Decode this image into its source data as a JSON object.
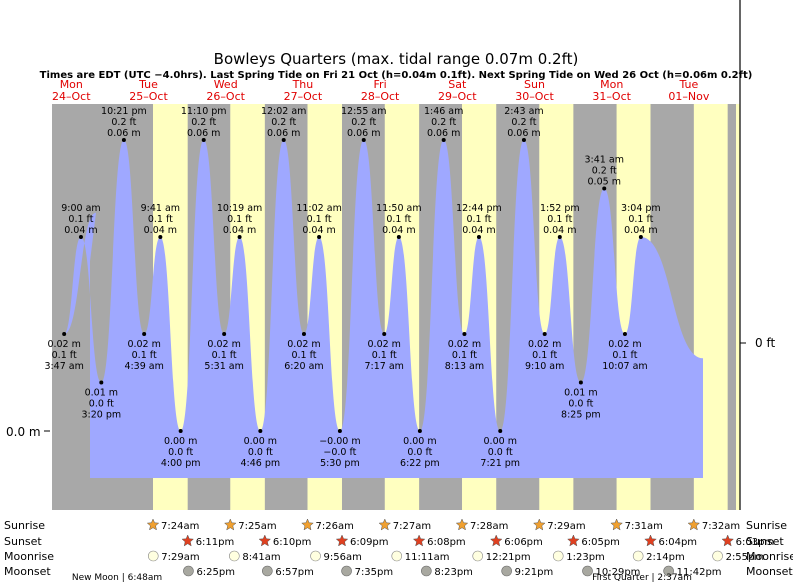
{
  "chart_data": {
    "type": "area",
    "title": "Bowleys Quarters (max. tidal range 0.07m 0.2ft)",
    "subtitle": "Times are EDT (UTC −4.0hrs). Last Spring Tide on Fri 21 Oct (h=0.04m 0.1ft). Next Spring Tide on Wed 26 Oct (h=0.06m 0.2ft)",
    "y_left_label": "0.0 m",
    "y_right_label": "0 ft",
    "days": [
      {
        "dow": "Mon",
        "date": "24–Oct"
      },
      {
        "dow": "Tue",
        "date": "25–Oct"
      },
      {
        "dow": "Wed",
        "date": "26–Oct"
      },
      {
        "dow": "Thu",
        "date": "27–Oct"
      },
      {
        "dow": "Fri",
        "date": "28–Oct"
      },
      {
        "dow": "Sat",
        "date": "29–Oct"
      },
      {
        "dow": "Sun",
        "date": "30–Oct"
      },
      {
        "dow": "Mon",
        "date": "31–Oct"
      },
      {
        "dow": "Tue",
        "date": "01–Nov"
      }
    ],
    "tides": [
      {
        "time": "3:47 am",
        "m": "0.02 m",
        "ft": "0.1 ft",
        "h": 0.02
      },
      {
        "time": "9:00 am",
        "m": "0.04 m",
        "ft": "0.1 ft",
        "h": 0.04
      },
      {
        "time": "3:20 pm",
        "m": "0.01 m",
        "ft": "0.0 ft",
        "h": 0.01
      },
      {
        "time": "10:21 pm",
        "m": "0.06 m",
        "ft": "0.2 ft",
        "h": 0.06
      },
      {
        "time": "4:39 am",
        "m": "0.02 m",
        "ft": "0.1 ft",
        "h": 0.02
      },
      {
        "time": "9:41 am",
        "m": "0.04 m",
        "ft": "0.1 ft",
        "h": 0.04
      },
      {
        "time": "4:00 pm",
        "m": "0.00 m",
        "ft": "0.0 ft",
        "h": 0.0
      },
      {
        "time": "11:10 pm",
        "m": "0.06 m",
        "ft": "0.2 ft",
        "h": 0.06
      },
      {
        "time": "5:31 am",
        "m": "0.02 m",
        "ft": "0.1 ft",
        "h": 0.02
      },
      {
        "time": "10:19 am",
        "m": "0.04 m",
        "ft": "0.1 ft",
        "h": 0.04
      },
      {
        "time": "4:46 pm",
        "m": "0.00 m",
        "ft": "0.0 ft",
        "h": 0.0
      },
      {
        "time": "12:02 am",
        "m": "0.06 m",
        "ft": "0.2 ft",
        "h": 0.06
      },
      {
        "time": "6:20 am",
        "m": "0.02 m",
        "ft": "0.1 ft",
        "h": 0.02
      },
      {
        "time": "11:02 am",
        "m": "0.04 m",
        "ft": "0.1 ft",
        "h": 0.04
      },
      {
        "time": "5:30 pm",
        "m": "−0.00 m",
        "ft": "−0.0 ft",
        "h": 0.0
      },
      {
        "time": "12:55 am",
        "m": "0.06 m",
        "ft": "0.2 ft",
        "h": 0.06
      },
      {
        "time": "7:17 am",
        "m": "0.02 m",
        "ft": "0.1 ft",
        "h": 0.02
      },
      {
        "time": "11:50 am",
        "m": "0.04 m",
        "ft": "0.1 ft",
        "h": 0.04
      },
      {
        "time": "6:22 pm",
        "m": "0.00 m",
        "ft": "0.0 ft",
        "h": 0.0
      },
      {
        "time": "1:46 am",
        "m": "0.06 m",
        "ft": "0.2 ft",
        "h": 0.06
      },
      {
        "time": "8:13 am",
        "m": "0.02 m",
        "ft": "0.1 ft",
        "h": 0.02
      },
      {
        "time": "12:44 pm",
        "m": "0.04 m",
        "ft": "0.1 ft",
        "h": 0.04
      },
      {
        "time": "7:21 pm",
        "m": "0.00 m",
        "ft": "0.0 ft",
        "h": 0.0
      },
      {
        "time": "2:43 am",
        "m": "0.06 m",
        "ft": "0.2 ft",
        "h": 0.06
      },
      {
        "time": "9:10 am",
        "m": "0.02 m",
        "ft": "0.1 ft",
        "h": 0.02
      },
      {
        "time": "1:52 pm",
        "m": "0.04 m",
        "ft": "0.1 ft",
        "h": 0.04
      },
      {
        "time": "8:25 pm",
        "m": "0.01 m",
        "ft": "0.0 ft",
        "h": 0.01
      },
      {
        "time": "3:41 am",
        "m": "0.05 m",
        "ft": "0.2 ft",
        "h": 0.05
      },
      {
        "time": "10:07 am",
        "m": "0.02 m",
        "ft": "0.1 ft",
        "h": 0.02
      },
      {
        "time": "3:04 pm",
        "m": "0.04 m",
        "ft": "0.1 ft",
        "h": 0.04
      }
    ],
    "sunrise": [
      "7:24am",
      "7:25am",
      "7:26am",
      "7:27am",
      "7:28am",
      "7:29am",
      "7:31am",
      "7:32am"
    ],
    "sunset": [
      "6:11pm",
      "6:10pm",
      "6:09pm",
      "6:08pm",
      "6:06pm",
      "6:05pm",
      "6:04pm",
      "6:03pm"
    ],
    "moonrise": [
      "7:29am",
      "8:41am",
      "9:56am",
      "11:11am",
      "12:21pm",
      "1:23pm",
      "2:14pm",
      "2:55pm"
    ],
    "moonset": [
      "6:25pm",
      "6:57pm",
      "7:35pm",
      "8:23pm",
      "9:21pm",
      "10:29pm",
      "11:42pm"
    ],
    "row_labels": {
      "sunrise": "Sunrise",
      "sunset": "Sunset",
      "moonrise": "Moonrise",
      "moonset": "Moonset"
    },
    "moon_phases": [
      {
        "label": "New Moon | 6:48am"
      },
      {
        "label": "First Quarter | 2:37am"
      }
    ],
    "colors": {
      "water": "#9fa8ff",
      "day": "#ffffc0",
      "night": "#a8a8a8",
      "accent_red": "#e00000",
      "sun_orange": "#f0a030",
      "sunset_red": "#e04020",
      "moon_light": "#ffffe0",
      "moon_dark": "#a8a8a0"
    }
  }
}
